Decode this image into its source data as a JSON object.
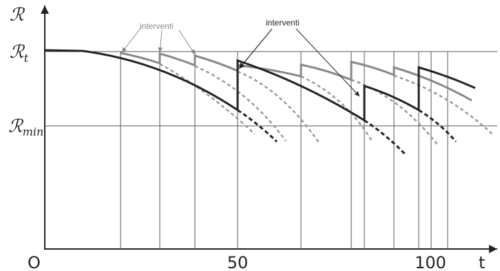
{
  "axes": {
    "y_symbol": "ℛ",
    "origin": "O",
    "x_ticks": [
      "50",
      "100"
    ],
    "x_label": "t"
  },
  "levels": {
    "rt": {
      "symbol": "ℛ",
      "sub": "t"
    },
    "rmin": {
      "symbol": "ℛ",
      "sub": "min"
    }
  },
  "annotations": [
    "interventi",
    "interventi"
  ]
}
